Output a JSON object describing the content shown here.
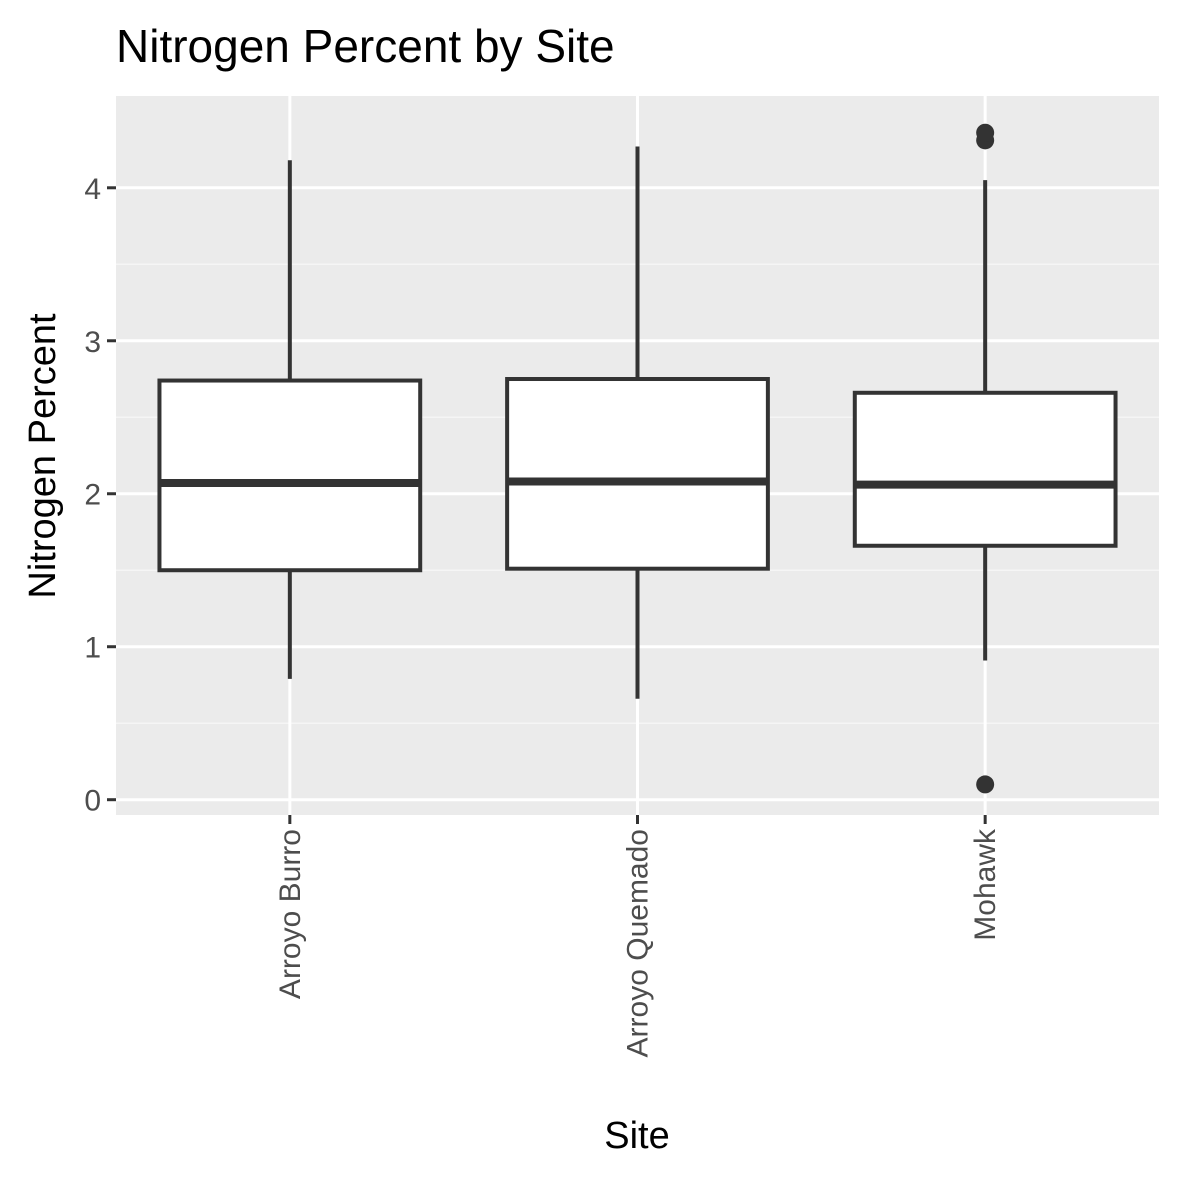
{
  "chart_data": {
    "type": "boxplot",
    "title": "Nitrogen Percent by Site",
    "xlabel": "Site",
    "ylabel": "Nitrogen Percent",
    "categories": [
      "Arroyo Burro",
      "Arroyo Quemado",
      "Mohawk"
    ],
    "ylim": [
      -0.1,
      4.6
    ],
    "yticks": [
      0,
      1,
      2,
      3,
      4
    ],
    "ytick_labels": [
      "0",
      "1",
      "2",
      "3",
      "4"
    ],
    "grid": true,
    "boxes": [
      {
        "category": "Arroyo Burro",
        "whisker_low": 0.79,
        "q1": 1.5,
        "median": 2.07,
        "q3": 2.74,
        "whisker_high": 4.18,
        "outliers": []
      },
      {
        "category": "Arroyo Quemado",
        "whisker_low": 0.66,
        "q1": 1.51,
        "median": 2.08,
        "q3": 2.75,
        "whisker_high": 4.27,
        "outliers": []
      },
      {
        "category": "Mohawk",
        "whisker_low": 0.91,
        "q1": 1.66,
        "median": 2.06,
        "q3": 2.66,
        "whisker_high": 4.05,
        "outliers": [
          4.31,
          4.36,
          0.1
        ]
      }
    ],
    "colors": {
      "panel_background": "#ebebeb",
      "grid_major": "#ffffff",
      "grid_minor": "#f5f5f5",
      "box_fill": "#ffffff",
      "box_line": "#333333",
      "outlier": "#333333",
      "tick_mark": "#333333",
      "tick_text": "#4d4d4d"
    }
  }
}
